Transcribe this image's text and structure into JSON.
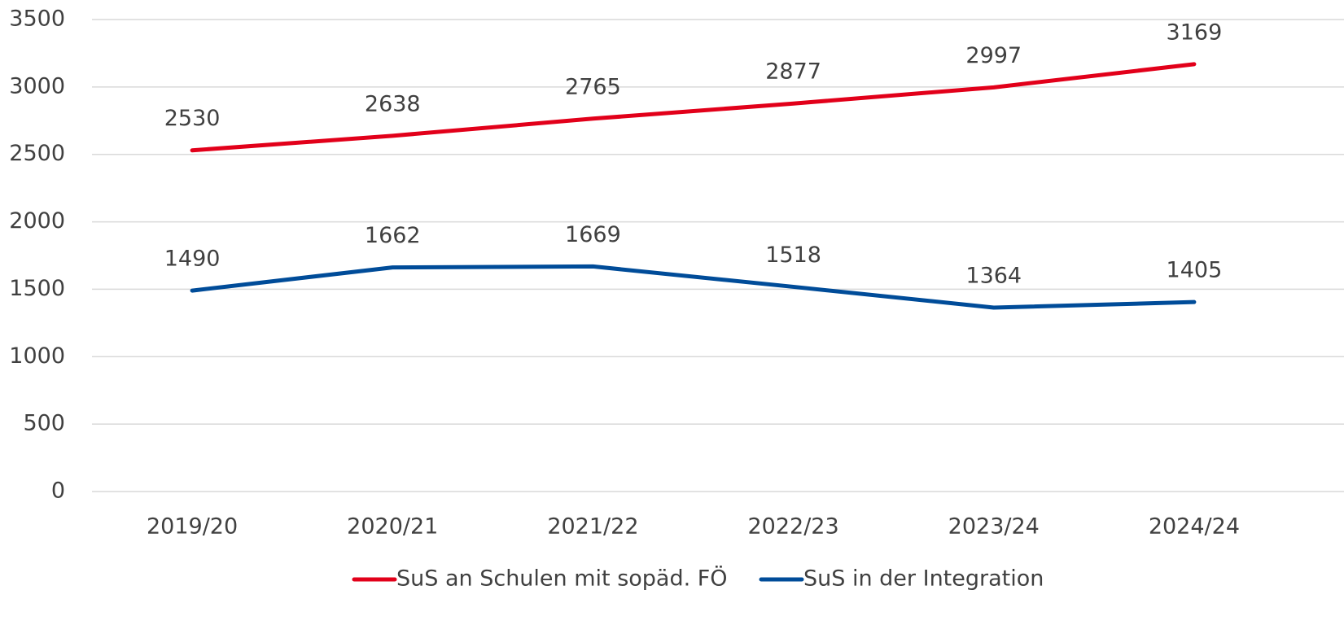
{
  "chart_data": {
    "type": "line",
    "categories": [
      "2019/20",
      "2020/21",
      "2021/22",
      "2022/23",
      "2023/24",
      "2024/24"
    ],
    "series": [
      {
        "name": "SuS an Schulen mit sopäd. FÖ",
        "color": "#e2001a",
        "values": [
          2530,
          2638,
          2765,
          2877,
          2997,
          3169
        ]
      },
      {
        "name": "SuS in der Integration",
        "color": "#004c99",
        "values": [
          1490,
          1662,
          1669,
          1518,
          1364,
          1405
        ]
      }
    ],
    "ylim": [
      0,
      3500
    ],
    "yticks": [
      0,
      500,
      1000,
      1500,
      2000,
      2500,
      3000,
      3500
    ],
    "grid": true,
    "legend": "bottom"
  }
}
